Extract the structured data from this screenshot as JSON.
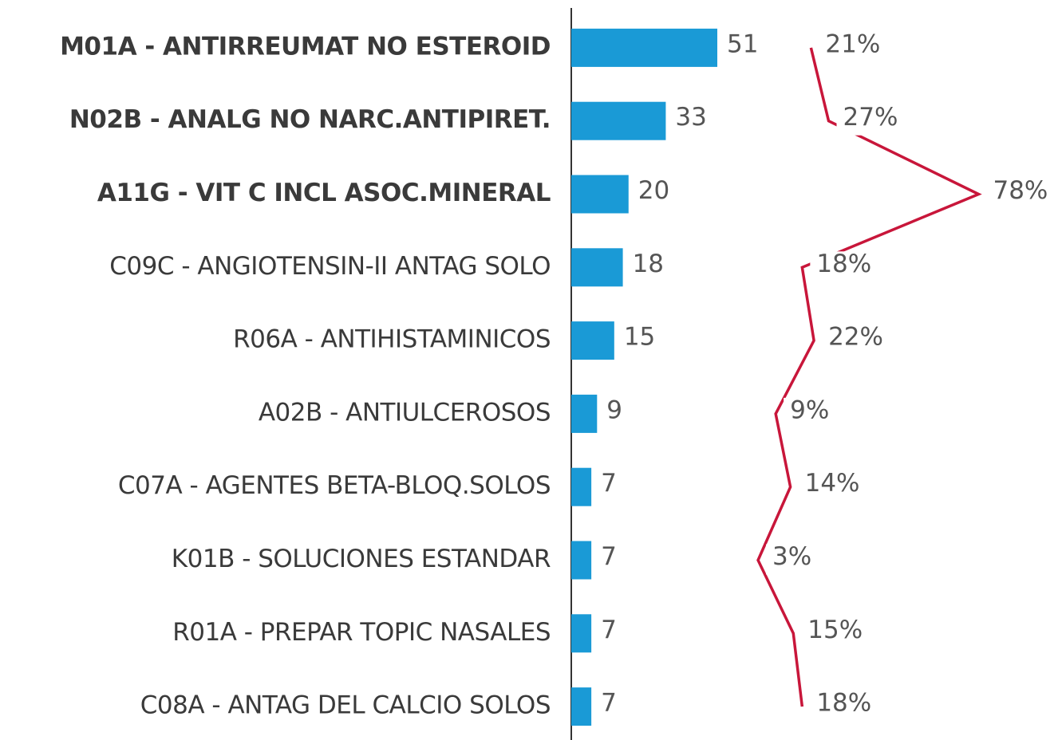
{
  "chart_data": {
    "type": "bar",
    "orientation": "horizontal",
    "categories": [
      "M01A - ANTIRREUMAT NO ESTEROID",
      "N02B - ANALG NO NARC.ANTIPIRET.",
      "A11G - VIT C INCL ASOC.MINERAL",
      "C09C - ANGIOTENSIN-II ANTAG SOLO",
      "R06A - ANTIHISTAMINICOS",
      "A02B - ANTIULCEROSOS",
      "C07A - AGENTES BETA-BLOQ.SOLOS",
      "K01B - SOLUCIONES ESTANDAR",
      "R01A - PREPAR TOPIC NASALES",
      "C08A - ANTAG DEL CALCIO SOLOS"
    ],
    "bold": [
      true,
      true,
      true,
      false,
      false,
      false,
      false,
      false,
      false,
      false
    ],
    "series": [
      {
        "type": "bar",
        "color": "#1a9ad6",
        "values": [
          51,
          33,
          20,
          18,
          15,
          9,
          7,
          7,
          7,
          7
        ]
      },
      {
        "type": "line",
        "color": "#c8163a",
        "axis": "x2",
        "values": [
          21,
          27,
          78,
          18,
          22,
          9,
          14,
          3,
          15,
          18
        ],
        "value_labels": [
          "21%",
          "27%",
          "78%",
          "18%",
          "22%",
          "9%",
          "14%",
          "3%",
          "15%",
          "18%"
        ]
      }
    ],
    "xlim": [
      0,
      170
    ],
    "x2lim": [
      0,
      105
    ]
  }
}
